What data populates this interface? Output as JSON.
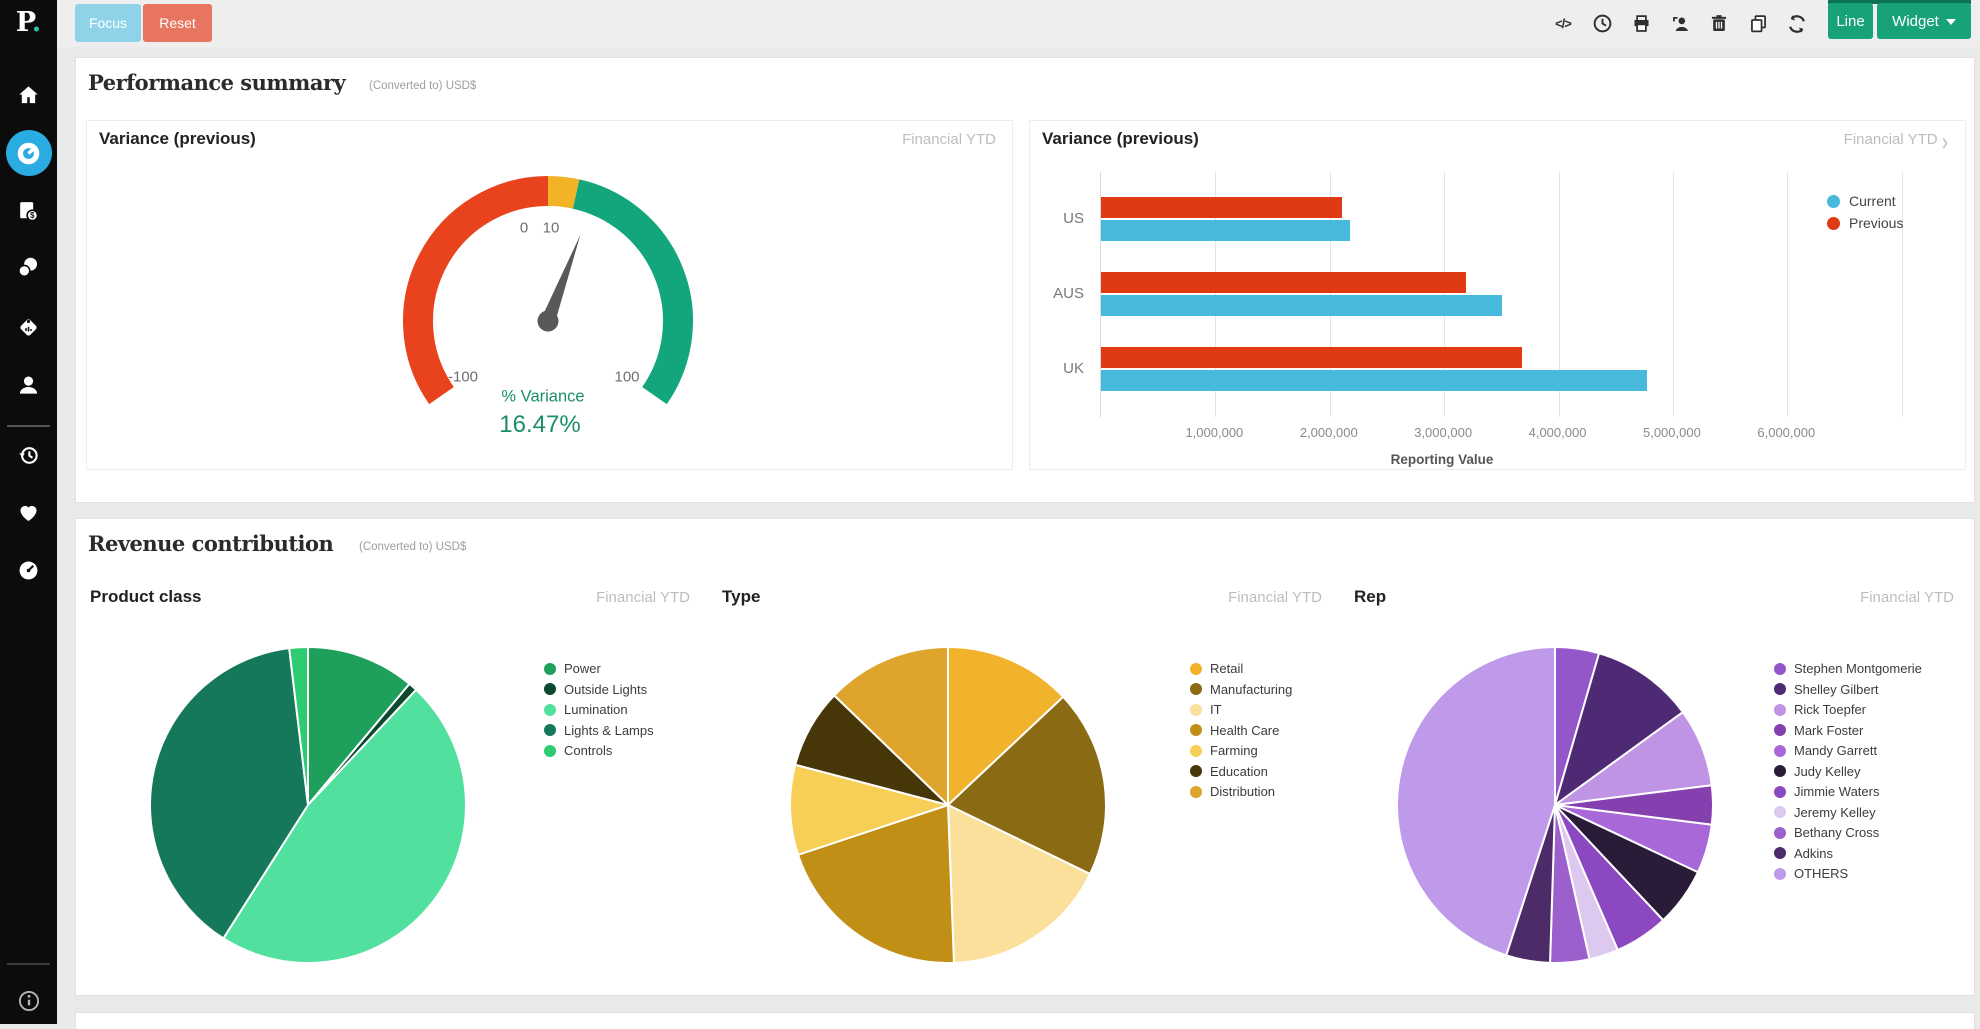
{
  "logo": {
    "letter": "P",
    "dot": "."
  },
  "topbar": {
    "focus_label": "Focus",
    "reset_label": "Reset",
    "line_label": "Line",
    "widget_label": "Widget",
    "icons": [
      "code-icon",
      "clock-icon",
      "print-icon",
      "user-share-icon",
      "trash-icon",
      "copy-icon",
      "refresh-icon"
    ]
  },
  "sidebar": {
    "items": [
      "home",
      "dashboards-active",
      "finance-docs",
      "coins",
      "price-tag",
      "user",
      "history",
      "favorites",
      "gauges",
      "info"
    ]
  },
  "performance": {
    "title": "Performance summary",
    "subtitle": "(Converted to) USD$"
  },
  "revenue": {
    "title": "Revenue contribution",
    "subtitle": "(Converted to) USD$"
  },
  "chart_data": [
    {
      "id": "variance-gauge",
      "type": "gauge",
      "title": "Variance (previous)",
      "period": "Financial YTD",
      "min": -100,
      "max": 100,
      "angle_span": 250,
      "value": 16.47,
      "value_label": "16.47%",
      "series_label": "% Variance",
      "value_color": "#1b8f63",
      "segments": [
        {
          "from": -100,
          "to": 0,
          "color": "#e8431d"
        },
        {
          "from": 0,
          "to": 10,
          "color": "#f2b327"
        },
        {
          "from": 10,
          "to": 100,
          "color": "#13a57b"
        }
      ],
      "tick_labels": {
        "zero": "0",
        "ten": "10",
        "min": "-100",
        "max": "100"
      }
    },
    {
      "id": "variance-bars",
      "type": "bar",
      "orientation": "horizontal",
      "title": "Variance (previous)",
      "period": "Financial YTD",
      "period_chevron": "❯",
      "categories": [
        "US",
        "AUS",
        "UK"
      ],
      "series": [
        {
          "name": "Current",
          "color": "#47b9dc",
          "values": [
            2180000,
            3510000,
            4770000
          ]
        },
        {
          "name": "Previous",
          "color": "#e03a15",
          "values": [
            2110000,
            3190000,
            3680000
          ]
        }
      ],
      "bar_row_order": [
        "Previous",
        "Current"
      ],
      "xlabel": "Reporting Value",
      "xlim": [
        0,
        7300000
      ],
      "grid_step": 1000000,
      "xticks": [
        {
          "v": 1000000,
          "label": "1,000,000"
        },
        {
          "v": 2000000,
          "label": "2,000,000"
        },
        {
          "v": 3000000,
          "label": "3,000,000"
        },
        {
          "v": 4000000,
          "label": "4,000,000"
        },
        {
          "v": 5000000,
          "label": "5,000,000"
        },
        {
          "v": 6000000,
          "label": "6,000,000"
        }
      ],
      "legend_position": "top-right",
      "grid": true
    },
    {
      "id": "product-class-pie",
      "type": "pie",
      "title": "Product class",
      "period": "Financial YTD",
      "slices": [
        {
          "label": "Power",
          "color": "#1ea05c",
          "pct": 11.1
        },
        {
          "label": "Outside Lights",
          "color": "#0c4a30",
          "pct": 0.9
        },
        {
          "label": "Lumination",
          "color": "#52e09e",
          "pct": 47.0
        },
        {
          "label": "Lights & Lamps",
          "color": "#16785a",
          "pct": 39.1
        },
        {
          "label": "Controls",
          "color": "#2ecc71",
          "pct": 1.9
        }
      ]
    },
    {
      "id": "type-pie",
      "type": "pie",
      "title": "Type",
      "period": "Financial YTD",
      "slices": [
        {
          "label": "Retail",
          "color": "#f1b32b",
          "pct": 13.0
        },
        {
          "label": "Manufacturing",
          "color": "#8a6a12",
          "pct": 19.2
        },
        {
          "label": "IT",
          "color": "#fbe09b",
          "pct": 17.2
        },
        {
          "label": "Health Care",
          "color": "#c18e16",
          "pct": 20.5
        },
        {
          "label": "Farming",
          "color": "#f7cf57",
          "pct": 9.2
        },
        {
          "label": "Education",
          "color": "#473607",
          "pct": 8.1
        },
        {
          "label": "Distribution",
          "color": "#dfa42c",
          "pct": 12.8
        }
      ]
    },
    {
      "id": "rep-pie",
      "type": "pie",
      "title": "Rep",
      "period": "Financial YTD",
      "slices": [
        {
          "label": "Stephen Montgomerie",
          "color": "#9456c8",
          "pct": 4.5
        },
        {
          "label": "Shelley Gilbert",
          "color": "#4e2a75",
          "pct": 10.5
        },
        {
          "label": "Rick Toepfer",
          "color": "#c094e4",
          "pct": 8.0
        },
        {
          "label": "Mark Foster",
          "color": "#8440ae",
          "pct": 4.0
        },
        {
          "label": "Mandy Garrett",
          "color": "#a868d8",
          "pct": 5.0
        },
        {
          "label": "Judy Kelley",
          "color": "#2a1c38",
          "pct": 6.0
        },
        {
          "label": "Jimmie Waters",
          "color": "#8c48c0",
          "pct": 5.5
        },
        {
          "label": "Jeremy Kelley",
          "color": "#ddc8f0",
          "pct": 3.0
        },
        {
          "label": "Bethany Cross",
          "color": "#9c60cc",
          "pct": 4.0
        },
        {
          "label": "Adkins",
          "color": "#4c2c68",
          "pct": 4.5
        },
        {
          "label": "OTHERS",
          "color": "#c09aea",
          "pct": 45.0
        }
      ]
    }
  ]
}
